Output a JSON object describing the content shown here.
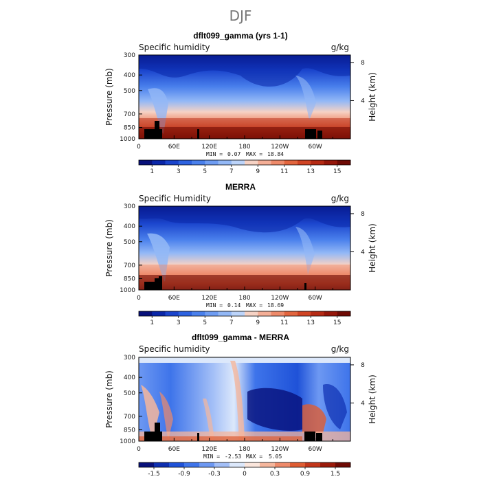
{
  "figure": {
    "title": "DJF"
  },
  "chart_data": [
    {
      "type": "heatmap",
      "title": "dflt099_gamma (yrs 1-1)",
      "left_label": "Specific humidity",
      "right_label": "g/kg",
      "ylabel": "Pressure (mb)",
      "ylabel_right": "Height (km)",
      "y_ticks": [
        "300",
        "400",
        "500",
        "700",
        "850",
        "1000"
      ],
      "y_tick_values": [
        300,
        400,
        500,
        700,
        850,
        1000
      ],
      "ylim": [
        1000,
        300
      ],
      "right_ticks": [
        "8",
        "4"
      ],
      "right_tick_values": [
        8,
        4
      ],
      "x_ticks": [
        "0",
        "60E",
        "120E",
        "180",
        "120W",
        "60W"
      ],
      "x_tick_values": [
        0,
        60,
        120,
        180,
        240,
        300
      ],
      "xlim": [
        0,
        360
      ],
      "min_label": "MIN =",
      "min_value": "0.07",
      "max_label": "MAX =",
      "max_value": "18.84",
      "colorbar_ticks": [
        "1",
        "3",
        "5",
        "7",
        "9",
        "11",
        "13",
        "15"
      ],
      "colorbar_tick_positions": [
        1,
        3,
        5,
        7,
        9,
        11,
        13,
        15
      ],
      "colorbar_levels": 16
    },
    {
      "type": "heatmap",
      "title": "MERRA",
      "left_label": "Specific Humidity",
      "right_label": "g/kg",
      "ylabel": "Pressure (mb)",
      "ylabel_right": "Height (km)",
      "y_ticks": [
        "300",
        "400",
        "500",
        "700",
        "850",
        "1000"
      ],
      "y_tick_values": [
        300,
        400,
        500,
        700,
        850,
        1000
      ],
      "ylim": [
        1000,
        300
      ],
      "right_ticks": [
        "8",
        "4"
      ],
      "right_tick_values": [
        8,
        4
      ],
      "x_ticks": [
        "0",
        "60E",
        "120E",
        "180",
        "120W",
        "60W"
      ],
      "x_tick_values": [
        0,
        60,
        120,
        180,
        240,
        300
      ],
      "xlim": [
        0,
        360
      ],
      "min_label": "MIN =",
      "min_value": "0.14",
      "max_label": "MAX =",
      "max_value": "18.69",
      "colorbar_ticks": [
        "1",
        "3",
        "5",
        "7",
        "9",
        "11",
        "13",
        "15"
      ],
      "colorbar_tick_positions": [
        1,
        3,
        5,
        7,
        9,
        11,
        13,
        15
      ],
      "colorbar_levels": 16
    },
    {
      "type": "heatmap",
      "title": "dflt099_gamma - MERRA",
      "left_label": "Specific humidity",
      "right_label": "g/kg",
      "ylabel": "Pressure (mb)",
      "ylabel_right": "Height (km)",
      "y_ticks": [
        "300",
        "400",
        "500",
        "700",
        "850",
        "1000"
      ],
      "y_tick_values": [
        300,
        400,
        500,
        700,
        850,
        1000
      ],
      "ylim": [
        1000,
        300
      ],
      "right_ticks": [
        "8",
        "4"
      ],
      "right_tick_values": [
        8,
        4
      ],
      "x_ticks": [
        "0",
        "60E",
        "120E",
        "180",
        "120W",
        "60W"
      ],
      "x_tick_values": [
        0,
        60,
        120,
        180,
        240,
        300
      ],
      "xlim": [
        0,
        360
      ],
      "min_label": "MIN =",
      "min_value": "-2.53",
      "max_label": "MAX =",
      "max_value": "5.05",
      "colorbar_ticks": [
        "-1.5",
        "-0.9",
        "-0.3",
        "0",
        "0.3",
        "0.9",
        "1.5"
      ],
      "colorbar_tick_positions": [
        1,
        3,
        5,
        7,
        9,
        11,
        13
      ],
      "colorbar_levels": 14
    }
  ],
  "palette": {
    "seq": [
      "#08107a",
      "#0a26a8",
      "#1a44cc",
      "#2d62e0",
      "#4a80ec",
      "#6e9cf2",
      "#93b8f6",
      "#bcd4fa",
      "#f6d2c4",
      "#f4ae96",
      "#ee8a6a",
      "#e2653e",
      "#d04424",
      "#b52a14",
      "#95160a",
      "#6e0a04"
    ],
    "div": [
      "#08107a",
      "#0e2fb0",
      "#1f52d8",
      "#3e74ea",
      "#6d98f2",
      "#a3bff7",
      "#dce8fb",
      "#fbe6dc",
      "#f5b69c",
      "#ee8a6a",
      "#de5c32",
      "#c2361a",
      "#9a1a0a",
      "#6e0a04"
    ]
  }
}
